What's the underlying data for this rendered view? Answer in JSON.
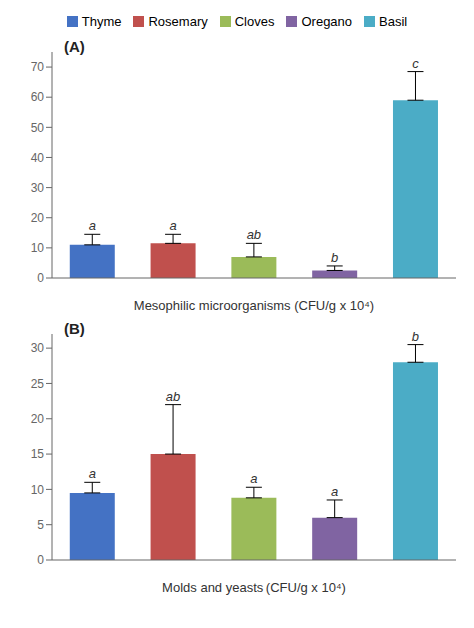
{
  "chart_data": [
    {
      "type": "bar",
      "categories": [
        "Thyme",
        "Rosemary",
        "Cloves",
        "Oregano",
        "Basil"
      ],
      "values": [
        11.0,
        11.5,
        7.0,
        2.5,
        59.0
      ],
      "errors": [
        3.5,
        3.0,
        4.5,
        1.5,
        9.5
      ],
      "sig_labels": [
        "a",
        "a",
        "ab",
        "b",
        "c"
      ],
      "colors": [
        "#4472C4",
        "#C0504D",
        "#9BBB59",
        "#8064A2",
        "#4BACC6"
      ],
      "xlabel": "Mesophilic microorganisms (CFU/g x 10⁴)",
      "annotations": [
        "(A)"
      ],
      "ylim": [
        0,
        75
      ],
      "yticks": [
        0,
        10,
        20,
        30,
        40,
        50,
        60,
        70
      ],
      "legend": "top",
      "tick_labels": "y",
      "grid": false
    },
    {
      "type": "bar",
      "categories": [
        "Thyme",
        "Rosemary",
        "Cloves",
        "Oregano",
        "Basil"
      ],
      "values": [
        9.5,
        15.0,
        8.8,
        6.0,
        28.0
      ],
      "errors": [
        1.5,
        7.0,
        1.5,
        2.5,
        2.5
      ],
      "sig_labels": [
        "a",
        "ab",
        "a",
        "a",
        "b"
      ],
      "colors": [
        "#4472C4",
        "#C0504D",
        "#9BBB59",
        "#8064A2",
        "#4BACC6"
      ],
      "xlabel": "Molds and yeasts (CFU/g x 10⁴)",
      "annotations": [
        "(B)"
      ],
      "ylim": [
        0,
        32
      ],
      "yticks": [
        0,
        5,
        10,
        15,
        20,
        25,
        30
      ],
      "tick_labels": "y",
      "grid": false
    }
  ]
}
